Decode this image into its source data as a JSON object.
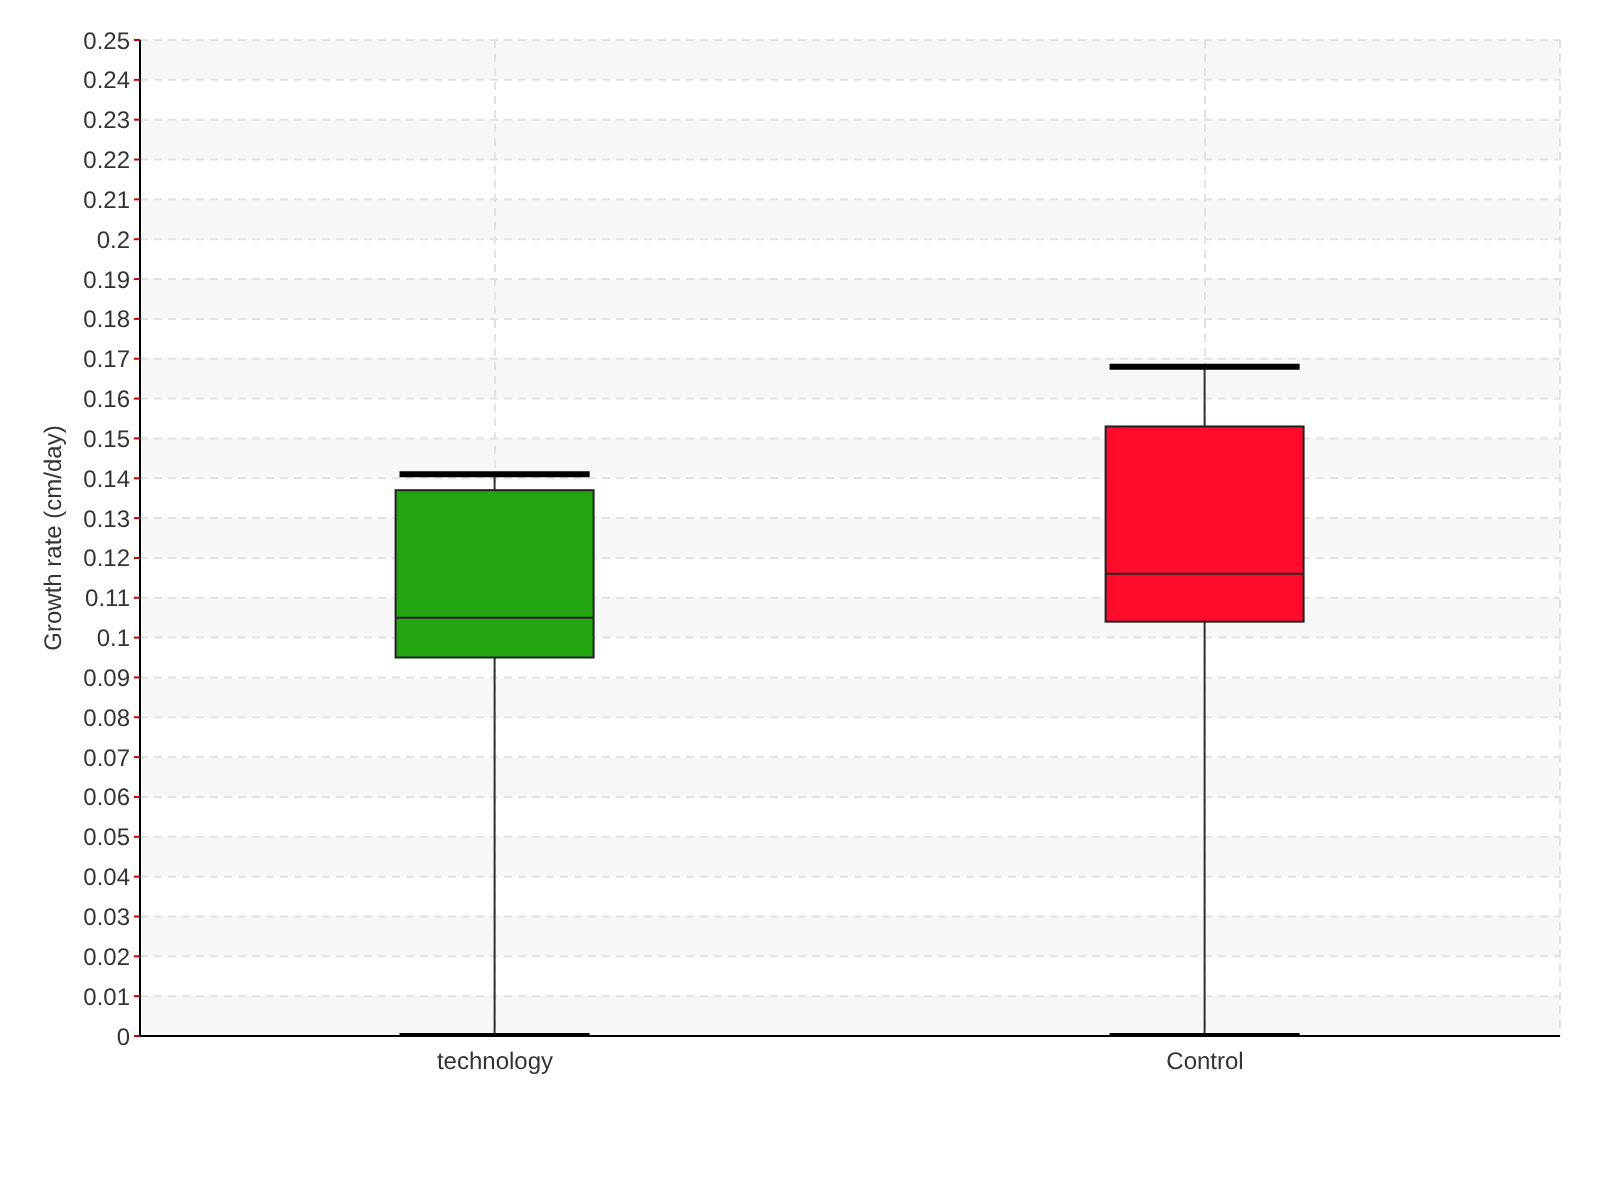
{
  "chart_data": {
    "type": "box",
    "ylabel": "Growth rate (cm/day)",
    "categories": [
      "technology",
      "Control"
    ],
    "boxes": [
      {
        "low": 0,
        "q1": 0.095,
        "median": 0.105,
        "q3": 0.137,
        "high": 0.141
      },
      {
        "low": 0,
        "q1": 0.104,
        "median": 0.116,
        "q3": 0.153,
        "high": 0.168
      }
    ],
    "colors": [
      "#22a510",
      "#ff0c2c"
    ],
    "ylim": [
      0,
      0.25
    ],
    "yticks": [
      0,
      0.01,
      0.02,
      0.03,
      0.04,
      0.05,
      0.06,
      0.07,
      0.08,
      0.09,
      0.1,
      0.11,
      0.12,
      0.13,
      0.14,
      0.15,
      0.16,
      0.17,
      0.18,
      0.19,
      0.2,
      0.21,
      0.22,
      0.23,
      0.24,
      0.25
    ],
    "grid": true
  }
}
